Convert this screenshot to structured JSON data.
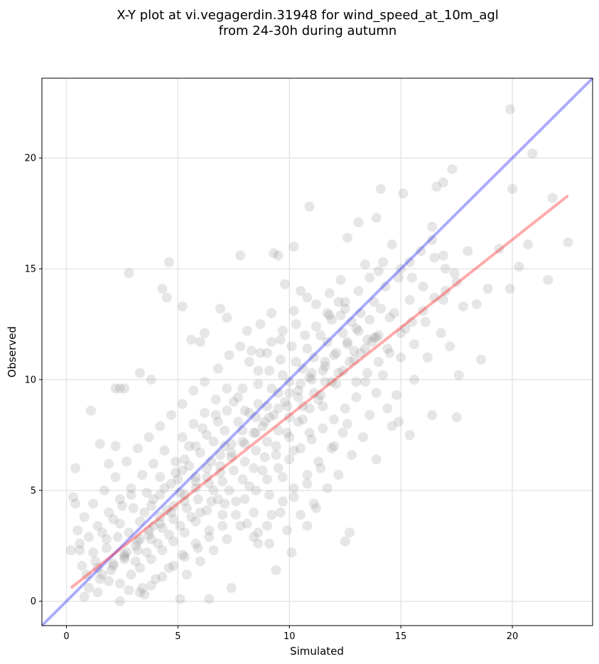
{
  "chart_data": {
    "type": "scatter",
    "title": [
      "X-Y plot at vi.vegagerdin.31948 for wind_speed_at_10m_agl",
      "from 24-30h during autumn"
    ],
    "xlabel": "Simulated",
    "ylabel": "Observed",
    "xlim": [
      -1.1,
      23.6
    ],
    "ylim": [
      -1.1,
      23.6
    ],
    "xticks": [
      0,
      5,
      10,
      15,
      20
    ],
    "yticks": [
      0,
      5,
      10,
      15,
      20
    ],
    "grid": true,
    "colors": {
      "points": "#808080",
      "identity_line": "#0000ff",
      "fit_line": "#ff0000"
    },
    "points": [
      [
        0.2,
        2.3
      ],
      [
        0.3,
        4.7
      ],
      [
        0.4,
        4.4
      ],
      [
        0.4,
        6.0
      ],
      [
        1.1,
        8.6
      ],
      [
        1.5,
        7.1
      ],
      [
        2.2,
        9.6
      ],
      [
        2.4,
        9.6
      ],
      [
        2.6,
        9.6
      ],
      [
        2.8,
        14.8
      ],
      [
        2.2,
        7.0
      ],
      [
        1.9,
        6.2
      ],
      [
        3.3,
        10.3
      ],
      [
        3.8,
        10.0
      ],
      [
        4.3,
        14.1
      ],
      [
        4.5,
        13.7
      ],
      [
        4.6,
        15.3
      ],
      [
        5.2,
        13.3
      ],
      [
        5.6,
        11.8
      ],
      [
        6.2,
        12.1
      ],
      [
        6.0,
        11.7
      ],
      [
        6.9,
        13.2
      ],
      [
        7.2,
        12.8
      ],
      [
        7.8,
        15.6
      ],
      [
        9.3,
        15.7
      ],
      [
        9.5,
        15.6
      ],
      [
        10.2,
        16.0
      ],
      [
        10.9,
        17.8
      ],
      [
        12.6,
        16.4
      ],
      [
        13.1,
        17.1
      ],
      [
        13.9,
        17.3
      ],
      [
        14.1,
        18.6
      ],
      [
        15.1,
        18.4
      ],
      [
        16.4,
        16.9
      ],
      [
        16.6,
        18.7
      ],
      [
        16.9,
        18.9
      ],
      [
        17.3,
        19.5
      ],
      [
        19.9,
        22.2
      ],
      [
        20.9,
        20.2
      ],
      [
        20.0,
        18.6
      ],
      [
        21.8,
        18.2
      ],
      [
        22.5,
        16.2
      ],
      [
        21.6,
        14.5
      ],
      [
        19.9,
        14.1
      ],
      [
        18.6,
        10.9
      ],
      [
        17.6,
        10.2
      ],
      [
        17.5,
        8.3
      ],
      [
        16.4,
        8.4
      ],
      [
        15.6,
        10.0
      ],
      [
        14.6,
        7.9
      ],
      [
        13.9,
        6.4
      ],
      [
        12.7,
        3.1
      ],
      [
        12.5,
        2.7
      ],
      [
        11.2,
        4.2
      ],
      [
        10.8,
        3.4
      ],
      [
        10.1,
        2.2
      ],
      [
        9.4,
        1.4
      ],
      [
        8.6,
        2.6
      ],
      [
        7.4,
        0.6
      ],
      [
        6.4,
        0.1
      ],
      [
        5.1,
        0.1
      ],
      [
        3.5,
        0.3
      ],
      [
        2.4,
        0.0
      ],
      [
        1.4,
        0.4
      ],
      [
        0.8,
        0.2
      ],
      [
        14.5,
        12.8
      ],
      [
        15.4,
        13.6
      ],
      [
        16.1,
        12.6
      ],
      [
        16.9,
        13.6
      ],
      [
        17.8,
        13.3
      ],
      [
        18.9,
        14.1
      ],
      [
        19.4,
        15.9
      ],
      [
        20.3,
        15.1
      ],
      [
        20.7,
        16.1
      ],
      [
        13.2,
        13.0
      ],
      [
        12.4,
        12.1
      ],
      [
        11.6,
        10.6
      ],
      [
        11.0,
        10.0
      ],
      [
        10.4,
        9.2
      ],
      [
        9.8,
        9.0
      ],
      [
        9.1,
        8.3
      ],
      [
        8.5,
        7.6
      ],
      [
        8.0,
        7.1
      ],
      [
        7.4,
        6.5
      ],
      [
        6.9,
        5.8
      ],
      [
        6.4,
        5.3
      ],
      [
        5.9,
        4.6
      ],
      [
        5.4,
        4.2
      ],
      [
        4.8,
        3.7
      ],
      [
        4.3,
        3.3
      ],
      [
        3.8,
        2.8
      ],
      [
        3.2,
        2.3
      ],
      [
        2.6,
        1.9
      ],
      [
        2.0,
        1.4
      ],
      [
        1.5,
        1.0
      ],
      [
        1.0,
        0.6
      ],
      [
        9.0,
        11.2
      ],
      [
        9.6,
        11.8
      ],
      [
        10.3,
        12.5
      ],
      [
        8.6,
        10.4
      ],
      [
        7.9,
        9.6
      ],
      [
        11.8,
        13.9
      ],
      [
        12.3,
        14.5
      ],
      [
        13.4,
        15.2
      ],
      [
        14.0,
        14.9
      ],
      [
        12.9,
        11.3
      ],
      [
        11.3,
        9.1
      ],
      [
        10.6,
        8.2
      ],
      [
        10.0,
        7.4
      ],
      [
        9.4,
        6.6
      ],
      [
        8.8,
        5.9
      ],
      [
        8.2,
        5.2
      ],
      [
        7.6,
        4.5
      ],
      [
        7.0,
        3.9
      ],
      [
        6.4,
        3.2
      ],
      [
        5.8,
        2.6
      ],
      [
        5.2,
        2.1
      ],
      [
        4.6,
        1.5
      ],
      [
        4.0,
        1.0
      ],
      [
        3.4,
        0.6
      ],
      [
        6.1,
        7.8
      ],
      [
        6.7,
        8.4
      ],
      [
        5.5,
        7.0
      ],
      [
        4.9,
        6.3
      ],
      [
        4.2,
        5.6
      ],
      [
        3.6,
        4.9
      ],
      [
        3.0,
        4.2
      ],
      [
        2.4,
        3.5
      ],
      [
        1.8,
        2.8
      ],
      [
        1.2,
        2.2
      ],
      [
        0.7,
        1.6
      ],
      [
        7.1,
        7.0
      ],
      [
        6.5,
        6.3
      ],
      [
        5.8,
        5.6
      ],
      [
        5.1,
        4.9
      ],
      [
        4.5,
        4.1
      ],
      [
        3.9,
        3.4
      ],
      [
        3.3,
        2.8
      ],
      [
        2.7,
        2.2
      ],
      [
        2.1,
        1.6
      ],
      [
        14.7,
        13.0
      ],
      [
        15.2,
        12.3
      ],
      [
        13.8,
        11.9
      ],
      [
        12.1,
        9.8
      ],
      [
        11.5,
        8.8
      ],
      [
        10.9,
        7.6
      ],
      [
        10.2,
        6.8
      ],
      [
        9.7,
        5.6
      ],
      [
        9.1,
        4.8
      ],
      [
        8.4,
        4.0
      ],
      [
        7.8,
        3.4
      ],
      [
        7.2,
        2.8
      ],
      [
        6.6,
        2.3
      ],
      [
        6.0,
        1.8
      ],
      [
        5.4,
        1.2
      ],
      [
        13.0,
        9.2
      ],
      [
        12.6,
        8.0
      ],
      [
        12.0,
        7.0
      ],
      [
        11.4,
        6.0
      ],
      [
        10.8,
        5.3
      ],
      [
        10.2,
        4.7
      ],
      [
        9.6,
        4.0
      ],
      [
        9.0,
        3.4
      ],
      [
        8.4,
        2.9
      ],
      [
        14.2,
        10.2
      ],
      [
        14.8,
        9.3
      ],
      [
        13.6,
        8.4
      ],
      [
        13.3,
        7.4
      ],
      [
        12.8,
        6.6
      ],
      [
        12.2,
        5.7
      ],
      [
        11.7,
        5.1
      ],
      [
        11.1,
        4.4
      ],
      [
        10.5,
        3.9
      ],
      [
        9.9,
        3.2
      ],
      [
        8.1,
        12.2
      ],
      [
        8.7,
        12.5
      ],
      [
        9.2,
        13.0
      ],
      [
        9.8,
        14.3
      ],
      [
        10.5,
        14.0
      ],
      [
        11.2,
        13.4
      ],
      [
        11.8,
        12.9
      ],
      [
        12.5,
        13.5
      ],
      [
        13.1,
        14.0
      ],
      [
        13.6,
        14.6
      ],
      [
        14.2,
        15.3
      ],
      [
        14.6,
        16.1
      ],
      [
        15.0,
        15.0
      ],
      [
        15.5,
        14.6
      ],
      [
        16.0,
        14.2
      ],
      [
        16.5,
        15.5
      ],
      [
        17.0,
        15.0
      ],
      [
        17.5,
        14.4
      ],
      [
        18.0,
        15.8
      ],
      [
        18.4,
        13.4
      ],
      [
        6.8,
        10.5
      ],
      [
        7.3,
        11.1
      ],
      [
        7.8,
        11.5
      ],
      [
        8.3,
        11.3
      ],
      [
        6.2,
        9.9
      ],
      [
        5.7,
        9.5
      ],
      [
        5.2,
        8.9
      ],
      [
        4.7,
        8.4
      ],
      [
        4.2,
        7.9
      ],
      [
        3.7,
        7.4
      ],
      [
        3.2,
        6.9
      ],
      [
        2.7,
        6.3
      ],
      [
        2.2,
        5.6
      ],
      [
        1.7,
        5.0
      ],
      [
        1.2,
        4.4
      ],
      [
        0.8,
        3.8
      ],
      [
        0.5,
        3.2
      ],
      [
        0.6,
        2.6
      ],
      [
        7.5,
        9.0
      ],
      [
        8.0,
        8.6
      ],
      [
        8.6,
        8.9
      ],
      [
        9.2,
        9.6
      ],
      [
        9.7,
        10.2
      ],
      [
        10.3,
        10.8
      ],
      [
        10.8,
        11.4
      ],
      [
        11.4,
        12.0
      ],
      [
        11.9,
        12.7
      ],
      [
        12.5,
        13.2
      ],
      [
        13.0,
        12.3
      ],
      [
        13.5,
        11.8
      ],
      [
        14.0,
        12.0
      ],
      [
        14.4,
        11.4
      ],
      [
        15.0,
        11.0
      ],
      [
        15.6,
        11.6
      ],
      [
        16.2,
        11.0
      ],
      [
        16.8,
        12.1
      ],
      [
        17.2,
        11.5
      ],
      [
        5.0,
        5.5
      ],
      [
        5.5,
        6.1
      ],
      [
        6.0,
        6.7
      ],
      [
        6.6,
        7.2
      ],
      [
        7.1,
        7.7
      ],
      [
        7.7,
        8.1
      ],
      [
        8.2,
        8.5
      ],
      [
        8.8,
        7.9
      ],
      [
        9.3,
        8.4
      ],
      [
        9.9,
        8.8
      ],
      [
        10.4,
        9.5
      ],
      [
        10.9,
        10.1
      ],
      [
        11.5,
        10.4
      ],
      [
        12.0,
        11.1
      ],
      [
        12.6,
        11.6
      ],
      [
        3.5,
        4.0
      ],
      [
        3.9,
        4.6
      ],
      [
        4.4,
        5.1
      ],
      [
        4.9,
        5.8
      ],
      [
        5.3,
        6.4
      ],
      [
        5.8,
        7.0
      ],
      [
        6.3,
        7.5
      ],
      [
        6.8,
        8.1
      ],
      [
        7.2,
        8.6
      ],
      [
        7.7,
        9.2
      ],
      [
        2.8,
        3.1
      ],
      [
        3.3,
        3.6
      ],
      [
        3.8,
        4.3
      ],
      [
        4.2,
        4.8
      ],
      [
        4.7,
        5.3
      ],
      [
        5.2,
        5.9
      ],
      [
        1.6,
        3.1
      ],
      [
        2.1,
        3.7
      ],
      [
        2.5,
        4.3
      ],
      [
        2.9,
        4.8
      ],
      [
        1.3,
        1.8
      ],
      [
        1.8,
        2.4
      ],
      [
        2.3,
        2.9
      ],
      [
        0.9,
        1.2
      ],
      [
        1.4,
        1.5
      ],
      [
        1.9,
        0.9
      ],
      [
        2.4,
        0.8
      ],
      [
        2.9,
        1.2
      ],
      [
        3.3,
        1.5
      ],
      [
        3.8,
        1.9
      ],
      [
        4.3,
        2.3
      ],
      [
        4.8,
        2.7
      ],
      [
        5.3,
        3.1
      ],
      [
        5.8,
        3.6
      ],
      [
        6.3,
        4.1
      ],
      [
        6.8,
        4.6
      ],
      [
        7.3,
        5.0
      ],
      [
        7.9,
        5.5
      ],
      [
        8.4,
        6.0
      ],
      [
        8.9,
        6.5
      ],
      [
        9.4,
        7.0
      ],
      [
        9.9,
        7.6
      ],
      [
        10.4,
        8.1
      ],
      [
        10.9,
        8.7
      ],
      [
        11.4,
        9.3
      ],
      [
        11.9,
        9.9
      ],
      [
        12.4,
        10.4
      ],
      [
        12.9,
        10.9
      ],
      [
        13.4,
        11.4
      ],
      [
        13.9,
        11.9
      ],
      [
        6.0,
        4.0
      ],
      [
        6.5,
        4.5
      ],
      [
        5.6,
        3.8
      ],
      [
        5.1,
        3.4
      ],
      [
        4.6,
        3.0
      ],
      [
        4.1,
        2.6
      ],
      [
        3.6,
        2.2
      ],
      [
        3.1,
        1.8
      ],
      [
        7.0,
        5.4
      ],
      [
        7.5,
        5.9
      ],
      [
        8.0,
        6.3
      ],
      [
        8.5,
        6.8
      ],
      [
        9.0,
        7.2
      ],
      [
        9.5,
        7.7
      ],
      [
        10.0,
        8.3
      ],
      [
        10.6,
        8.8
      ],
      [
        11.1,
        9.4
      ],
      [
        11.6,
        9.9
      ],
      [
        12.2,
        10.3
      ],
      [
        12.7,
        10.8
      ],
      [
        13.2,
        11.2
      ],
      [
        13.7,
        11.7
      ],
      [
        8.6,
        9.8
      ],
      [
        9.1,
        10.4
      ],
      [
        9.6,
        10.9
      ],
      [
        10.1,
        11.5
      ],
      [
        10.7,
        12.0
      ],
      [
        11.2,
        12.4
      ],
      [
        11.7,
        13.0
      ],
      [
        12.2,
        13.5
      ],
      [
        8.2,
        10.8
      ],
      [
        8.7,
        11.2
      ],
      [
        9.2,
        11.7
      ],
      [
        9.7,
        12.2
      ],
      [
        10.2,
        13.1
      ],
      [
        10.8,
        13.7
      ],
      [
        6.6,
        5.0
      ],
      [
        7.1,
        4.4
      ],
      [
        7.6,
        3.9
      ],
      [
        8.1,
        3.5
      ],
      [
        8.6,
        3.1
      ],
      [
        9.1,
        2.6
      ],
      [
        5.2,
        7.4
      ],
      [
        5.7,
        8.0
      ],
      [
        6.2,
        8.5
      ],
      [
        6.7,
        9.1
      ],
      [
        7.2,
        9.6
      ],
      [
        4.4,
        6.8
      ],
      [
        3.9,
        6.2
      ],
      [
        3.4,
        5.7
      ],
      [
        2.9,
        5.1
      ],
      [
        2.4,
        4.6
      ],
      [
        1.9,
        4.0
      ],
      [
        1.4,
        3.4
      ],
      [
        1.0,
        2.9
      ],
      [
        0.6,
        2.3
      ],
      [
        13.8,
        13.5
      ],
      [
        14.3,
        14.2
      ],
      [
        14.9,
        14.6
      ],
      [
        15.4,
        15.3
      ],
      [
        15.9,
        15.8
      ],
      [
        16.4,
        16.3
      ],
      [
        16.9,
        15.6
      ],
      [
        17.4,
        14.8
      ],
      [
        13.4,
        9.9
      ],
      [
        13.9,
        9.4
      ],
      [
        14.4,
        8.7
      ],
      [
        14.9,
        8.1
      ],
      [
        15.4,
        7.5
      ],
      [
        12.4,
        7.6
      ],
      [
        11.9,
        6.9
      ],
      [
        11.3,
        6.3
      ],
      [
        10.8,
        5.7
      ],
      [
        10.2,
        5.1
      ],
      [
        9.7,
        4.5
      ],
      [
        9.2,
        3.9
      ],
      [
        12.8,
        12.6
      ],
      [
        12.3,
        12.9
      ],
      [
        11.7,
        11.7
      ],
      [
        11.1,
        11.0
      ],
      [
        10.6,
        10.5
      ],
      [
        10.0,
        9.9
      ],
      [
        9.5,
        9.4
      ],
      [
        9.0,
        8.8
      ],
      [
        8.5,
        8.3
      ],
      [
        7.9,
        7.7
      ],
      [
        7.4,
        7.1
      ],
      [
        6.9,
        6.6
      ],
      [
        6.3,
        6.0
      ],
      [
        5.8,
        5.4
      ],
      [
        5.3,
        4.8
      ],
      [
        4.8,
        4.3
      ],
      [
        4.2,
        3.8
      ],
      [
        3.7,
        3.2
      ],
      [
        3.2,
        2.7
      ],
      [
        2.6,
        2.1
      ],
      [
        2.1,
        1.7
      ],
      [
        1.6,
        1.2
      ],
      [
        14.1,
        13.2
      ],
      [
        13.6,
        12.7
      ],
      [
        13.1,
        12.2
      ],
      [
        12.6,
        11.7
      ],
      [
        12.1,
        11.2
      ],
      [
        11.6,
        10.8
      ],
      [
        11.0,
        10.3
      ],
      [
        10.5,
        9.8
      ],
      [
        10.0,
        9.4
      ],
      [
        9.5,
        8.7
      ],
      [
        8.9,
        8.1
      ],
      [
        8.4,
        7.6
      ],
      [
        7.9,
        7.2
      ],
      [
        7.4,
        6.7
      ],
      [
        6.9,
        6.1
      ],
      [
        6.3,
        5.6
      ],
      [
        5.8,
        5.1
      ],
      [
        5.3,
        4.5
      ],
      [
        4.7,
        4.0
      ],
      [
        4.2,
        3.5
      ],
      [
        3.7,
        3.0
      ],
      [
        3.1,
        2.5
      ],
      [
        2.6,
        2.0
      ],
      [
        7.0,
        3.4
      ],
      [
        6.4,
        2.9
      ],
      [
        5.9,
        2.4
      ],
      [
        5.3,
        2.0
      ],
      [
        4.8,
        1.6
      ],
      [
        4.3,
        1.1
      ],
      [
        3.8,
        0.7
      ],
      [
        3.3,
        0.4
      ],
      [
        2.8,
        0.5
      ],
      [
        8.0,
        4.6
      ],
      [
        8.5,
        5.0
      ],
      [
        9.0,
        5.5
      ],
      [
        9.5,
        6.0
      ],
      [
        10.0,
        6.4
      ],
      [
        10.5,
        6.9
      ],
      [
        11.0,
        7.3
      ],
      [
        11.5,
        7.8
      ],
      [
        12.0,
        8.2
      ],
      [
        12.5,
        8.7
      ],
      [
        13.0,
        9.9
      ],
      [
        13.5,
        10.3
      ],
      [
        14.0,
        10.8
      ],
      [
        14.5,
        11.2
      ],
      [
        15.0,
        12.1
      ],
      [
        15.5,
        12.6
      ],
      [
        16.0,
        13.1
      ],
      [
        16.5,
        13.7
      ],
      [
        17.0,
        14.0
      ]
    ],
    "identity_line": [
      [
        -1.1,
        -1.1
      ],
      [
        23.6,
        23.6
      ]
    ],
    "fit_line": [
      [
        0.2,
        0.6
      ],
      [
        22.5,
        18.3
      ]
    ]
  }
}
